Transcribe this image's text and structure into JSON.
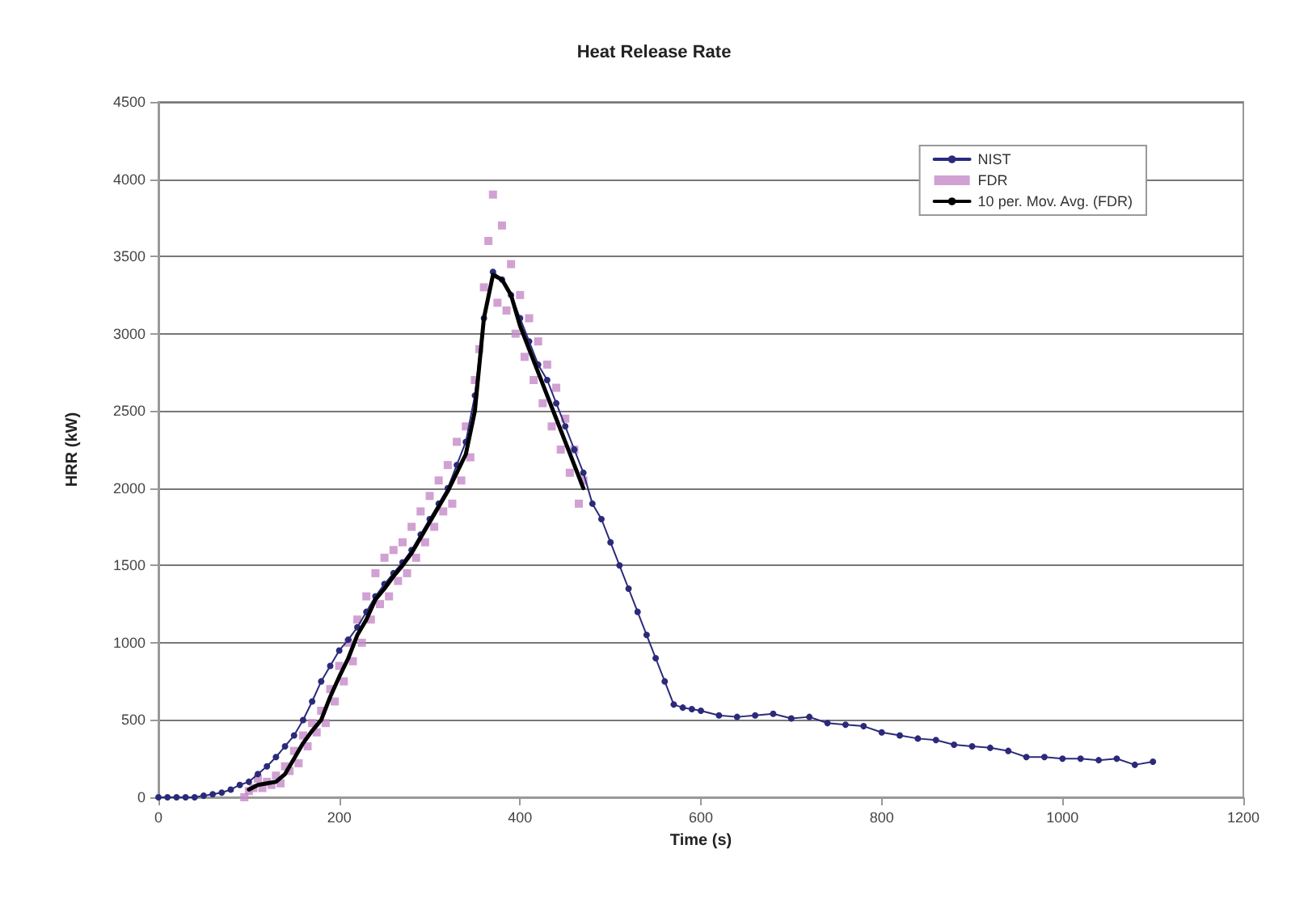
{
  "chart_data": {
    "type": "line",
    "title": "Heat Release Rate",
    "xlabel": "Time (s)",
    "ylabel": "HRR (kW)",
    "xlim": [
      0,
      1200
    ],
    "xticks": [
      0,
      200,
      400,
      600,
      800,
      1000,
      1200
    ],
    "ylim": [
      0,
      4500
    ],
    "yticks": [
      0,
      500,
      1000,
      1500,
      2000,
      2500,
      3000,
      3500,
      4000,
      4500
    ],
    "grid": "y",
    "legend": "top right",
    "series": [
      {
        "name": "NIST",
        "marker": "circle",
        "color": "#2b2a7a",
        "x": [
          0,
          10,
          20,
          30,
          40,
          50,
          60,
          70,
          80,
          90,
          100,
          110,
          120,
          130,
          140,
          150,
          160,
          170,
          180,
          190,
          200,
          210,
          220,
          230,
          240,
          250,
          260,
          270,
          280,
          290,
          300,
          310,
          320,
          330,
          340,
          350,
          360,
          370,
          380,
          390,
          400,
          410,
          420,
          430,
          440,
          450,
          460,
          470,
          480,
          490,
          500,
          510,
          520,
          530,
          540,
          550,
          560,
          570,
          580,
          590,
          600,
          620,
          640,
          660,
          680,
          700,
          720,
          740,
          760,
          780,
          800,
          820,
          840,
          860,
          880,
          900,
          920,
          940,
          960,
          980,
          1000,
          1020,
          1040,
          1060,
          1080,
          1100
        ],
        "values": [
          0,
          0,
          0,
          0,
          0,
          10,
          20,
          30,
          50,
          80,
          100,
          150,
          200,
          260,
          330,
          400,
          500,
          620,
          750,
          850,
          950,
          1020,
          1100,
          1200,
          1300,
          1380,
          1450,
          1520,
          1600,
          1700,
          1800,
          1900,
          2000,
          2150,
          2300,
          2600,
          3100,
          3400,
          3350,
          3250,
          3100,
          2950,
          2800,
          2700,
          2550,
          2400,
          2250,
          2100,
          1900,
          1800,
          1650,
          1500,
          1350,
          1200,
          1050,
          900,
          750,
          600,
          580,
          570,
          560,
          530,
          520,
          530,
          540,
          510,
          520,
          480,
          470,
          460,
          420,
          400,
          380,
          370,
          340,
          330,
          320,
          300,
          260,
          260,
          250,
          250,
          240,
          250,
          210,
          230
        ]
      },
      {
        "name": "FDR",
        "type": "scatter",
        "marker": "square",
        "color": "#c58ac8",
        "x": [
          95,
          100,
          105,
          110,
          115,
          120,
          125,
          130,
          135,
          140,
          145,
          150,
          155,
          160,
          165,
          170,
          175,
          180,
          185,
          190,
          195,
          200,
          205,
          210,
          215,
          220,
          225,
          230,
          235,
          240,
          245,
          250,
          255,
          260,
          265,
          270,
          275,
          280,
          285,
          290,
          295,
          300,
          305,
          310,
          315,
          320,
          325,
          330,
          335,
          340,
          345,
          350,
          355,
          360,
          365,
          370,
          375,
          380,
          385,
          390,
          395,
          400,
          405,
          410,
          415,
          420,
          425,
          430,
          435,
          440,
          445,
          450,
          455,
          460,
          465,
          470
        ],
        "values": [
          0,
          40,
          60,
          120,
          60,
          100,
          80,
          140,
          90,
          200,
          170,
          300,
          220,
          400,
          330,
          480,
          420,
          560,
          480,
          700,
          620,
          850,
          750,
          1000,
          880,
          1150,
          1000,
          1300,
          1150,
          1450,
          1250,
          1550,
          1300,
          1600,
          1400,
          1650,
          1450,
          1750,
          1550,
          1850,
          1650,
          1950,
          1750,
          2050,
          1850,
          2150,
          1900,
          2300,
          2050,
          2400,
          2200,
          2700,
          2900,
          3300,
          3600,
          3900,
          3200,
          3700,
          3150,
          3450,
          3000,
          3250,
          2850,
          3100,
          2700,
          2950,
          2550,
          2800,
          2400,
          2650,
          2250,
          2450,
          2100,
          2250,
          1900,
          2050
        ]
      },
      {
        "name": "10 per. Mov. Avg. (FDR)",
        "marker": "none",
        "color": "#000000",
        "x": [
          100,
          110,
          120,
          130,
          140,
          150,
          160,
          170,
          180,
          190,
          200,
          210,
          220,
          230,
          240,
          250,
          260,
          270,
          280,
          290,
          300,
          310,
          320,
          330,
          340,
          350,
          360,
          370,
          380,
          390,
          400,
          410,
          420,
          430,
          440,
          450,
          460,
          470
        ],
        "values": [
          50,
          80,
          90,
          100,
          150,
          250,
          350,
          430,
          500,
          650,
          780,
          900,
          1050,
          1150,
          1280,
          1350,
          1430,
          1500,
          1580,
          1680,
          1780,
          1880,
          1980,
          2100,
          2220,
          2500,
          3100,
          3380,
          3350,
          3250,
          3050,
          2900,
          2750,
          2600,
          2450,
          2300,
          2150,
          2000
        ]
      }
    ]
  }
}
